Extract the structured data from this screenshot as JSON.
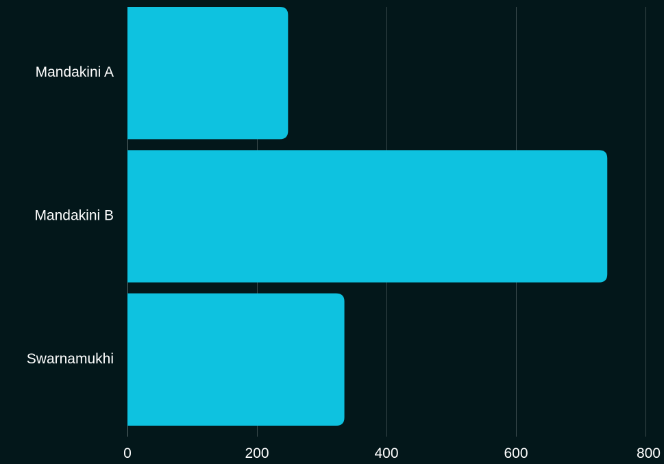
{
  "chart_data": {
    "type": "bar",
    "orientation": "horizontal",
    "categories": [
      "Mandakini A",
      "Mandakini B",
      "Swarnamukhi"
    ],
    "values": [
      248,
      741,
      335
    ],
    "xlim": [
      0,
      800
    ],
    "xticks": [
      0,
      200,
      400,
      600,
      800
    ],
    "xtick_labels": [
      "0",
      "200",
      "400",
      "600",
      "800"
    ],
    "grid": "vertical",
    "legend": "none",
    "colors": {
      "background": "#03171a",
      "bar": "#0ec2e0",
      "grid": "#3a4a4c",
      "text": "#ffffff"
    }
  }
}
